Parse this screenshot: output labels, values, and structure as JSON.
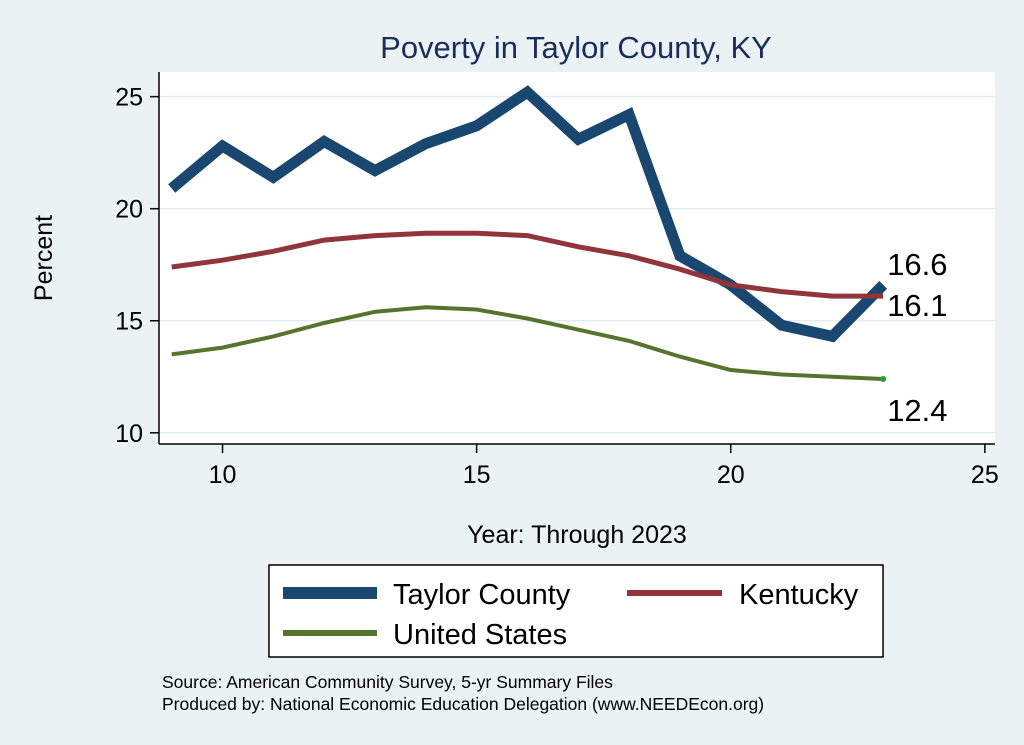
{
  "chart_data": {
    "type": "line",
    "title": "Poverty in Taylor County, KY",
    "xlabel": "Year: Through 2023",
    "ylabel": "Percent",
    "xlim": [
      8.75,
      25.2
    ],
    "ylim": [
      9.5,
      26.1
    ],
    "xticks": [
      10,
      15,
      20,
      25
    ],
    "yticks": [
      10,
      15,
      20,
      25
    ],
    "grid": true,
    "legend_position": "bottom",
    "series": [
      {
        "name": "Taylor County",
        "color": "#1a476f",
        "x": [
          9,
          10,
          11,
          12,
          13,
          14,
          15,
          16,
          17,
          18,
          19,
          20,
          21,
          22,
          23
        ],
        "values": [
          20.9,
          22.8,
          21.4,
          23.0,
          21.7,
          22.9,
          23.7,
          25.2,
          23.1,
          24.2,
          17.9,
          16.6,
          14.8,
          14.3,
          16.6
        ],
        "end_label": "16.6"
      },
      {
        "name": "Kentucky",
        "color": "#90353b",
        "x": [
          9,
          10,
          11,
          12,
          13,
          14,
          15,
          16,
          17,
          18,
          19,
          20,
          21,
          22,
          23
        ],
        "values": [
          17.4,
          17.7,
          18.1,
          18.6,
          18.8,
          18.9,
          18.9,
          18.8,
          18.3,
          17.9,
          17.3,
          16.6,
          16.3,
          16.1,
          16.1
        ],
        "end_label": "16.1"
      },
      {
        "name": "United States",
        "color": "#55752f",
        "x": [
          9,
          10,
          11,
          12,
          13,
          14,
          15,
          16,
          17,
          18,
          19,
          20,
          21,
          22,
          23
        ],
        "values": [
          13.5,
          13.8,
          14.3,
          14.9,
          15.4,
          15.6,
          15.5,
          15.1,
          14.6,
          14.1,
          13.4,
          12.8,
          12.6,
          12.5,
          12.4
        ],
        "end_label": "12.4"
      }
    ]
  },
  "notes": {
    "source": "Source: American Community Survey, 5-yr Summary Files",
    "produced_by": "Produced by: National Economic Education Delegation (www.NEEDEcon.org)"
  }
}
